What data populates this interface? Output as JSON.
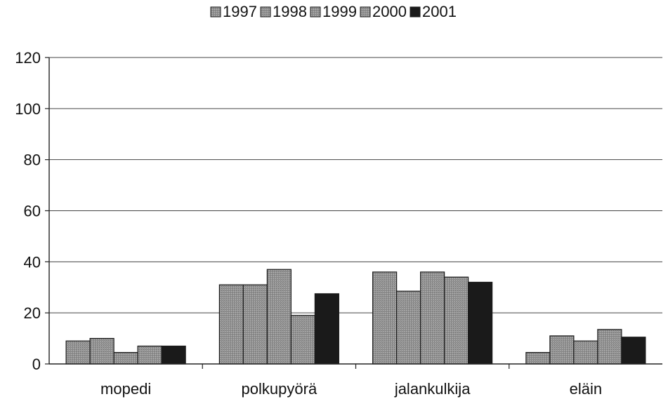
{
  "chart_data": {
    "type": "bar",
    "categories": [
      "mopedi",
      "polkupyörä",
      "jalankulkija",
      "eläin"
    ],
    "series": [
      {
        "name": "1997",
        "values": [
          9,
          31,
          36,
          4.5
        ],
        "color": "#8a8a8a",
        "pattern": "dotted-gray"
      },
      {
        "name": "1998",
        "values": [
          10,
          31,
          28.5,
          11
        ],
        "color": "#8a8a8a",
        "pattern": "dotted-gray"
      },
      {
        "name": "1999",
        "values": [
          4.5,
          37,
          36,
          9
        ],
        "color": "#8a8a8a",
        "pattern": "dotted-gray"
      },
      {
        "name": "2000",
        "values": [
          7,
          19,
          34,
          13.5
        ],
        "color": "#8a8a8a",
        "pattern": "dotted-gray"
      },
      {
        "name": "2001",
        "values": [
          7,
          27.5,
          32,
          10.5
        ],
        "color": "#1a1a1a",
        "pattern": "solid-black"
      }
    ],
    "yticks": [
      "0",
      "20",
      "40",
      "60",
      "80",
      "100",
      "120"
    ],
    "ylim": [
      0,
      120
    ],
    "grid": true,
    "legend_position": "top-center",
    "title": "",
    "xlabel": "",
    "ylabel": ""
  }
}
